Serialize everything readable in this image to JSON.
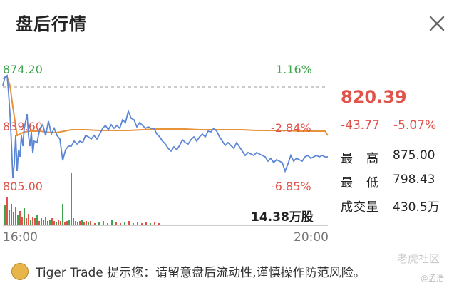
{
  "header": {
    "title": "盘后行情"
  },
  "chart": {
    "y_labels": {
      "top": "874.20",
      "mid": "839.60",
      "bottom": "805.00"
    },
    "pct_labels": {
      "top": "1.16%",
      "mid": "-2.84%",
      "bottom": "-6.85%"
    },
    "volume_label": "14.38万股",
    "x_ticks": [
      "16:00",
      "20:00"
    ],
    "colors": {
      "price_line": "#5b86d6",
      "avg_line": "#e8923a",
      "up": "#3ea44d",
      "down": "#e0524a"
    }
  },
  "quote": {
    "last_price": "820.39",
    "change": "-43.77",
    "change_pct": "-5.07%",
    "high_label": "最　高",
    "high_value": "875.00",
    "low_label": "最　低",
    "low_value": "798.43",
    "volume_label": "成交量",
    "volume_value": "430.5万"
  },
  "footer": {
    "tip": "Tiger Trade 提示您：请留意盘后流动性,谨慎操作防范风险。",
    "icon": "coin-icon"
  },
  "watermark": {
    "text": "老虎社区",
    "sub": "@孟浩"
  }
}
